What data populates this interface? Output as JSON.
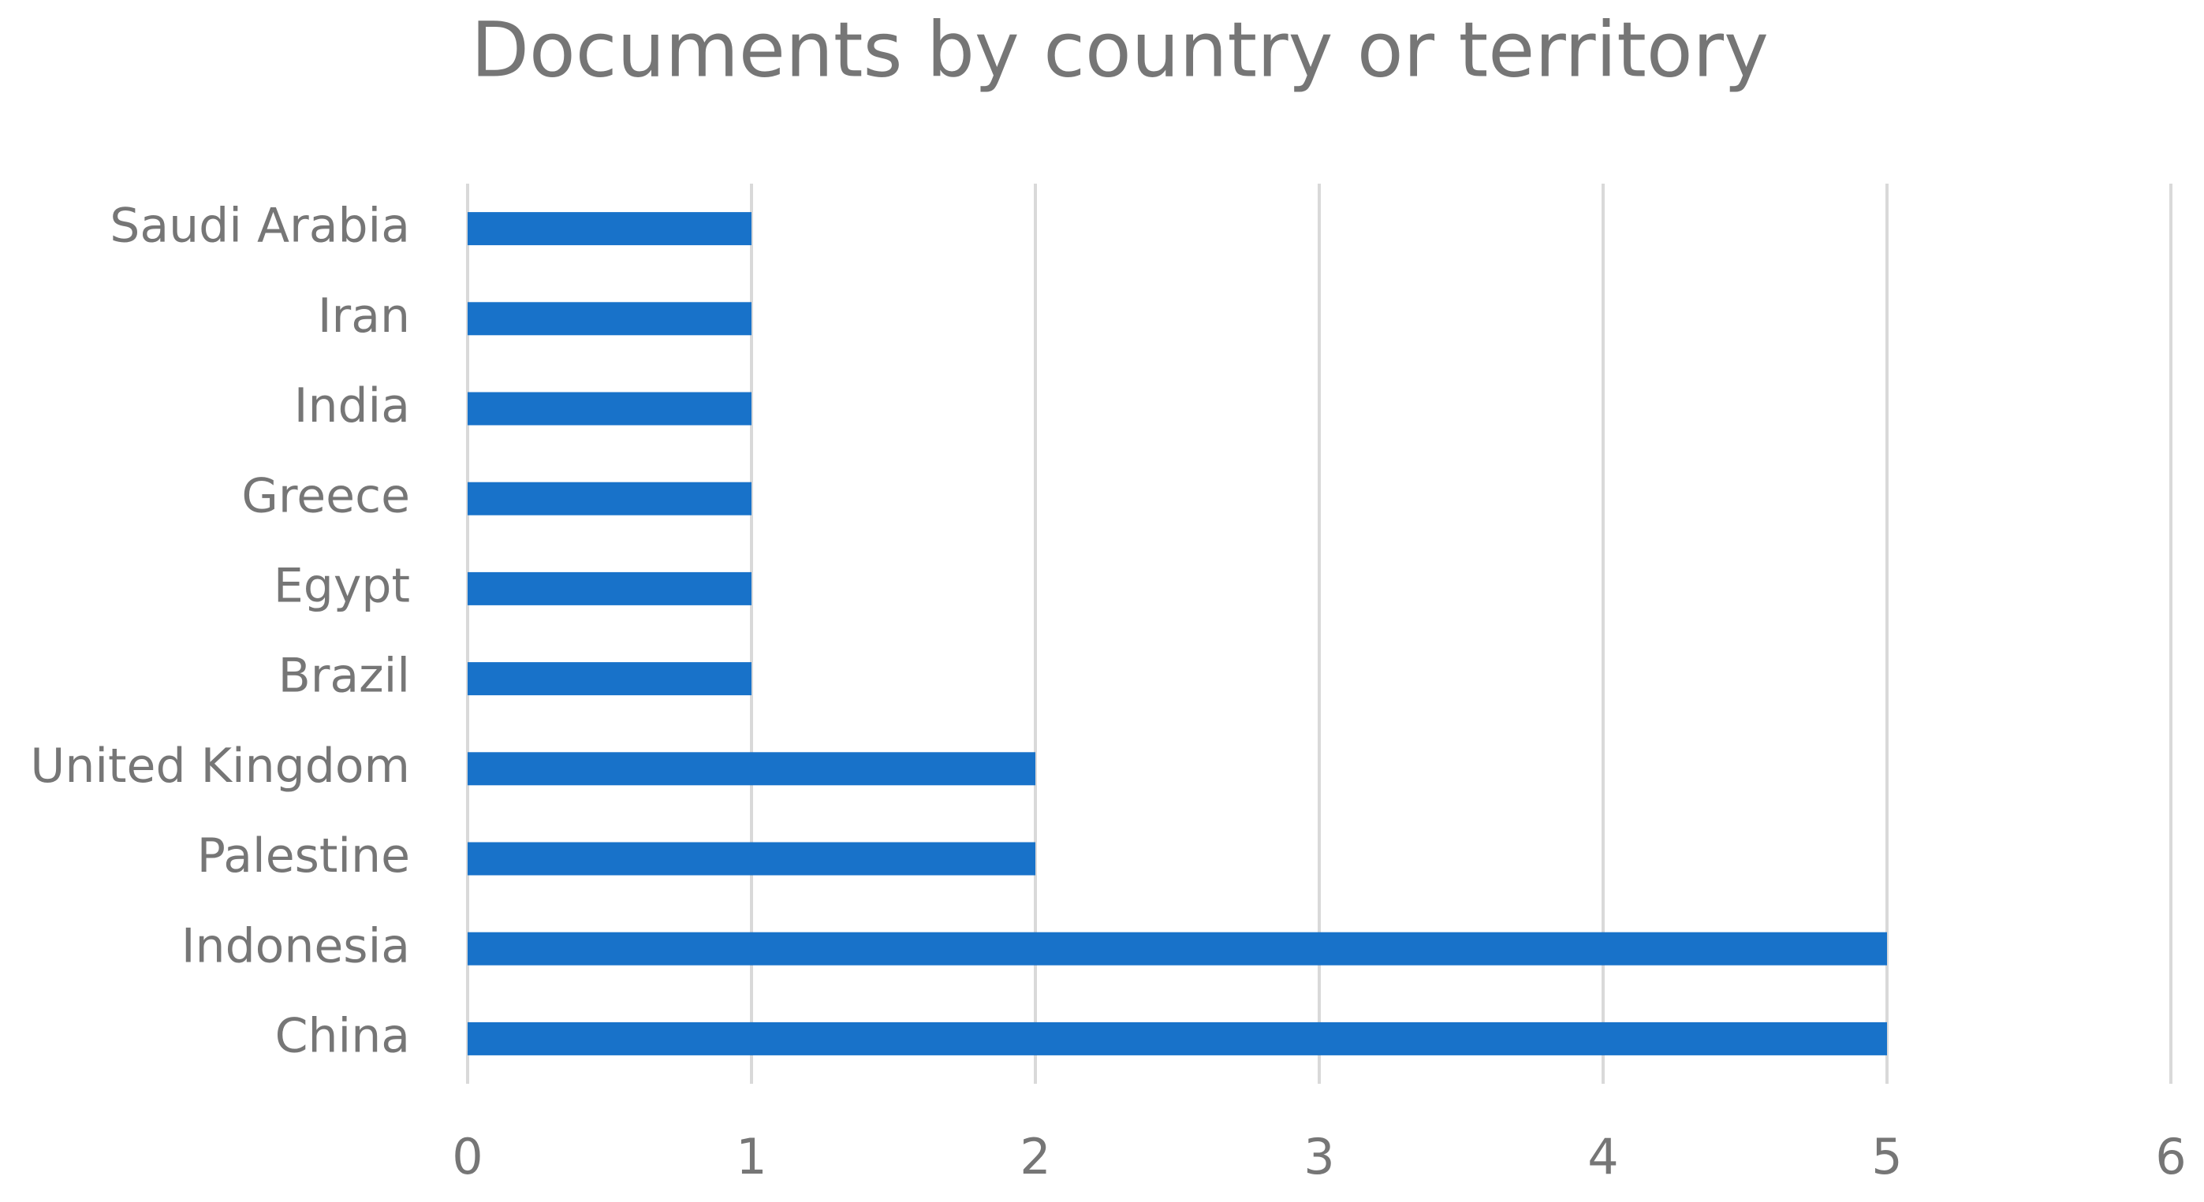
{
  "chart_data": {
    "type": "hbar",
    "title": "Documents by country or territory",
    "categories": [
      "Saudi Arabia",
      "Iran",
      "India",
      "Greece",
      "Egypt",
      "Brazil",
      "United Kingdom",
      "Palestine",
      "Indonesia",
      "China"
    ],
    "values": [
      1,
      1,
      1,
      1,
      1,
      1,
      2,
      2,
      5,
      5
    ],
    "color": "#1872c9",
    "xlim": [
      0,
      6
    ],
    "xticks": [
      0,
      1,
      2,
      3,
      4,
      5,
      6
    ],
    "grid": true
  }
}
